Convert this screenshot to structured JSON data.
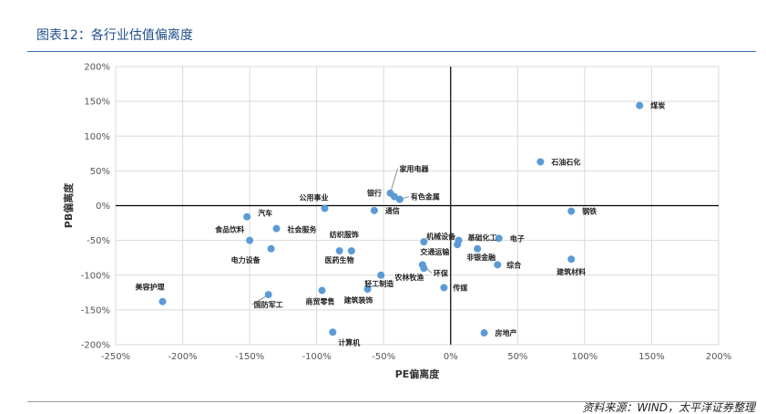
{
  "header": {
    "title": "图表12：各行业估值偏离度"
  },
  "footer": {
    "source": "资料来源：WIND，太平洋证券整理"
  },
  "chart_data": {
    "type": "scatter",
    "title": "",
    "xlabel": "PE偏离度",
    "ylabel": "PB偏离度",
    "xlim": [
      -250,
      200
    ],
    "ylim": [
      -200,
      200
    ],
    "x_ticks": [
      -250,
      -200,
      -150,
      -100,
      -50,
      0,
      50,
      100,
      150,
      200
    ],
    "y_ticks": [
      -200,
      -150,
      -100,
      -50,
      0,
      50,
      100,
      150,
      200
    ],
    "x_tick_labels": [
      "-250%",
      "-200%",
      "-150%",
      "-100%",
      "-50%",
      "0%",
      "50%",
      "100%",
      "150%",
      "200%"
    ],
    "y_tick_labels": [
      "-200%",
      "-150%",
      "-100%",
      "-50%",
      "0%",
      "50%",
      "100%",
      "150%",
      "200%"
    ],
    "unit": "%",
    "grid": true,
    "point_color": "#5b9bd5",
    "points": [
      {
        "label": "煤炭",
        "x": 141,
        "y": 144
      },
      {
        "label": "石油石化",
        "x": 67,
        "y": 63
      },
      {
        "label": "钢铁",
        "x": 90,
        "y": -8
      },
      {
        "label": "建筑材料",
        "x": 90,
        "y": -77
      },
      {
        "label": "电子",
        "x": 36,
        "y": -47
      },
      {
        "label": "综合",
        "x": 35,
        "y": -85
      },
      {
        "label": "非银金融",
        "x": 20,
        "y": -62
      },
      {
        "label": "基础化工",
        "x": 6,
        "y": -50
      },
      {
        "label": "机械设备",
        "x": 5,
        "y": -56
      },
      {
        "label": "房地产",
        "x": 25,
        "y": -183
      },
      {
        "label": "传媒",
        "x": -5,
        "y": -118
      },
      {
        "label": "交通运输",
        "x": -20,
        "y": -52
      },
      {
        "label": "环保",
        "x": -21,
        "y": -85
      },
      {
        "label": "农林牧渔",
        "x": -20,
        "y": -90
      },
      {
        "label": "家用电器",
        "x": -45,
        "y": 18
      },
      {
        "label": "有色金属",
        "x": -38,
        "y": 9
      },
      {
        "label": "银行",
        "x": -42,
        "y": 13
      },
      {
        "label": "通信",
        "x": -57,
        "y": -7
      },
      {
        "label": "轻工制造",
        "x": -52,
        "y": -100
      },
      {
        "label": "建筑装饰",
        "x": -62,
        "y": -120
      },
      {
        "label": "公用事业",
        "x": -94,
        "y": -4
      },
      {
        "label": "纺织服饰",
        "x": -74,
        "y": -65
      },
      {
        "label": "医药生物",
        "x": -83,
        "y": -65
      },
      {
        "label": "社会服务",
        "x": -130,
        "y": -33
      },
      {
        "label": "汽车",
        "x": -152,
        "y": -16
      },
      {
        "label": "食品饮料",
        "x": -150,
        "y": -50
      },
      {
        "label": "电力设备",
        "x": -134,
        "y": -62
      },
      {
        "label": "商贸零售",
        "x": -96,
        "y": -122
      },
      {
        "label": "国防军工",
        "x": -136,
        "y": -128
      },
      {
        "label": "计算机",
        "x": -88,
        "y": -182
      },
      {
        "label": "美容护理",
        "x": -215,
        "y": -138
      }
    ]
  }
}
